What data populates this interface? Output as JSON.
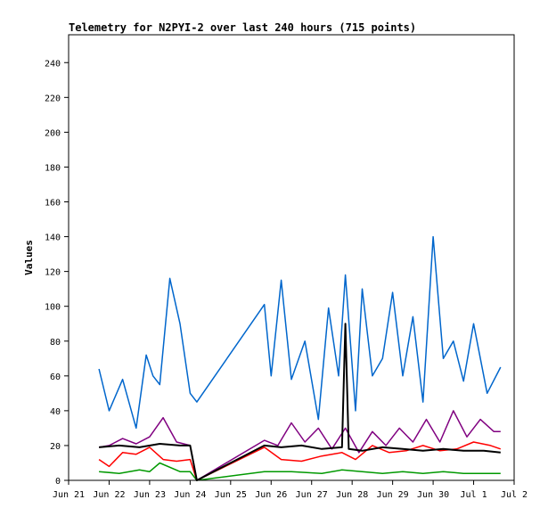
{
  "chart_data": {
    "type": "line",
    "title": "Telemetry for N2PYI-2 over last 240 hours (715 points)",
    "ylabel": "Values",
    "xlabel": "",
    "ylim": [
      0,
      256
    ],
    "xlim": [
      "Jun 21 00:00",
      "Jul 2 00:00"
    ],
    "y_ticks": [
      0,
      20,
      40,
      60,
      80,
      100,
      120,
      140,
      160,
      180,
      200,
      220,
      240
    ],
    "x_tick_labels": [
      "Jun 21",
      "Jun 22",
      "Jun 23",
      "Jun 24",
      "Jun 25",
      "Jun 26",
      "Jun 27",
      "Jun 28",
      "Jun 29",
      "Jun 30",
      "Jul 1",
      "Jul 2"
    ],
    "grid": false,
    "legend": "none",
    "series": [
      {
        "color": "#0066cc",
        "x": [
          "Jun 21 18:00",
          "Jun 22 00:00",
          "Jun 22 08:00",
          "Jun 22 16:00",
          "Jun 22 22:00",
          "Jun 23 02:00",
          "Jun 23 06:00",
          "Jun 23 12:00",
          "Jun 23 18:00",
          "Jun 24 00:00",
          "Jun 24 04:00",
          "Jun 25 20:00",
          "Jun 26 00:00",
          "Jun 26 06:00",
          "Jun 26 12:00",
          "Jun 26 20:00",
          "Jun 27 04:00",
          "Jun 27 10:00",
          "Jun 27 16:00",
          "Jun 27 20:00",
          "Jun 28 02:00",
          "Jun 28 06:00",
          "Jun 28 12:00",
          "Jun 28 18:00",
          "Jun 29 00:00",
          "Jun 29 06:00",
          "Jun 29 12:00",
          "Jun 29 18:00",
          "Jun 30 00:00",
          "Jun 30 06:00",
          "Jun 30 12:00",
          "Jun 30 18:00",
          "Jul 1 00:00",
          "Jul 1 08:00",
          "Jul 1 16:00"
        ],
        "y": [
          64,
          40,
          58,
          30,
          72,
          60,
          55,
          116,
          90,
          50,
          45,
          101,
          60,
          115,
          58,
          80,
          35,
          99,
          60,
          118,
          40,
          110,
          60,
          70,
          108,
          60,
          94,
          45,
          140,
          70,
          80,
          57,
          90,
          50,
          65
        ]
      },
      {
        "color": "#800080",
        "x": [
          "Jun 21 18:00",
          "Jun 22 00:00",
          "Jun 22 08:00",
          "Jun 22 16:00",
          "Jun 23 00:00",
          "Jun 23 08:00",
          "Jun 23 16:00",
          "Jun 24 00:00",
          "Jun 24 04:00",
          "Jun 25 20:00",
          "Jun 26 04:00",
          "Jun 26 12:00",
          "Jun 26 20:00",
          "Jun 27 04:00",
          "Jun 27 12:00",
          "Jun 27 20:00",
          "Jun 28 04:00",
          "Jun 28 12:00",
          "Jun 28 20:00",
          "Jun 29 04:00",
          "Jun 29 12:00",
          "Jun 29 20:00",
          "Jun 30 04:00",
          "Jun 30 12:00",
          "Jun 30 20:00",
          "Jul 1 04:00",
          "Jul 1 12:00",
          "Jul 1 16:00"
        ],
        "y": [
          19,
          20,
          24,
          21,
          25,
          36,
          22,
          20,
          0,
          23,
          20,
          33,
          22,
          30,
          18,
          30,
          16,
          28,
          20,
          30,
          22,
          35,
          22,
          40,
          25,
          35,
          28,
          28
        ]
      },
      {
        "color": "#ff0000",
        "x": [
          "Jun 21 18:00",
          "Jun 22 00:00",
          "Jun 22 08:00",
          "Jun 22 16:00",
          "Jun 23 00:00",
          "Jun 23 08:00",
          "Jun 23 16:00",
          "Jun 24 00:00",
          "Jun 24 04:00",
          "Jun 25 20:00",
          "Jun 26 06:00",
          "Jun 26 18:00",
          "Jun 27 06:00",
          "Jun 27 18:00",
          "Jun 28 02:00",
          "Jun 28 12:00",
          "Jun 28 22:00",
          "Jun 29 08:00",
          "Jun 29 18:00",
          "Jun 30 04:00",
          "Jun 30 14:00",
          "Jul 1 00:00",
          "Jul 1 10:00",
          "Jul 1 16:00"
        ],
        "y": [
          12,
          8,
          16,
          15,
          19,
          12,
          11,
          12,
          0,
          19,
          12,
          11,
          14,
          16,
          12,
          20,
          16,
          17,
          20,
          17,
          18,
          22,
          20,
          18
        ]
      },
      {
        "color": "#009900",
        "x": [
          "Jun 21 18:00",
          "Jun 22 06:00",
          "Jun 22 18:00",
          "Jun 23 00:00",
          "Jun 23 06:00",
          "Jun 23 18:00",
          "Jun 24 00:00",
          "Jun 24 04:00",
          "Jun 25 20:00",
          "Jun 26 12:00",
          "Jun 27 06:00",
          "Jun 27 18:00",
          "Jun 28 06:00",
          "Jun 28 18:00",
          "Jun 29 06:00",
          "Jun 29 18:00",
          "Jun 30 06:00",
          "Jun 30 18:00",
          "Jul 1 06:00",
          "Jul 1 16:00"
        ],
        "y": [
          5,
          4,
          6,
          5,
          10,
          5,
          5,
          0,
          5,
          5,
          4,
          6,
          5,
          4,
          5,
          4,
          5,
          4,
          4,
          4
        ]
      },
      {
        "color": "#000000",
        "x": [
          "Jun 21 18:00",
          "Jun 22 06:00",
          "Jun 22 18:00",
          "Jun 23 06:00",
          "Jun 23 18:00",
          "Jun 24 00:00",
          "Jun 24 04:00",
          "Jun 25 20:00",
          "Jun 26 06:00",
          "Jun 26 18:00",
          "Jun 27 06:00",
          "Jun 27 18:00",
          "Jun 27 20:00",
          "Jun 27 22:00",
          "Jun 28 06:00",
          "Jun 28 18:00",
          "Jun 29 06:00",
          "Jun 29 18:00",
          "Jun 30 06:00",
          "Jun 30 18:00",
          "Jul 1 06:00",
          "Jul 1 16:00"
        ],
        "y": [
          19,
          20,
          19,
          21,
          20,
          20,
          0,
          20,
          19,
          20,
          18,
          19,
          90,
          18,
          17,
          19,
          18,
          17,
          18,
          17,
          17,
          16
        ]
      }
    ]
  }
}
